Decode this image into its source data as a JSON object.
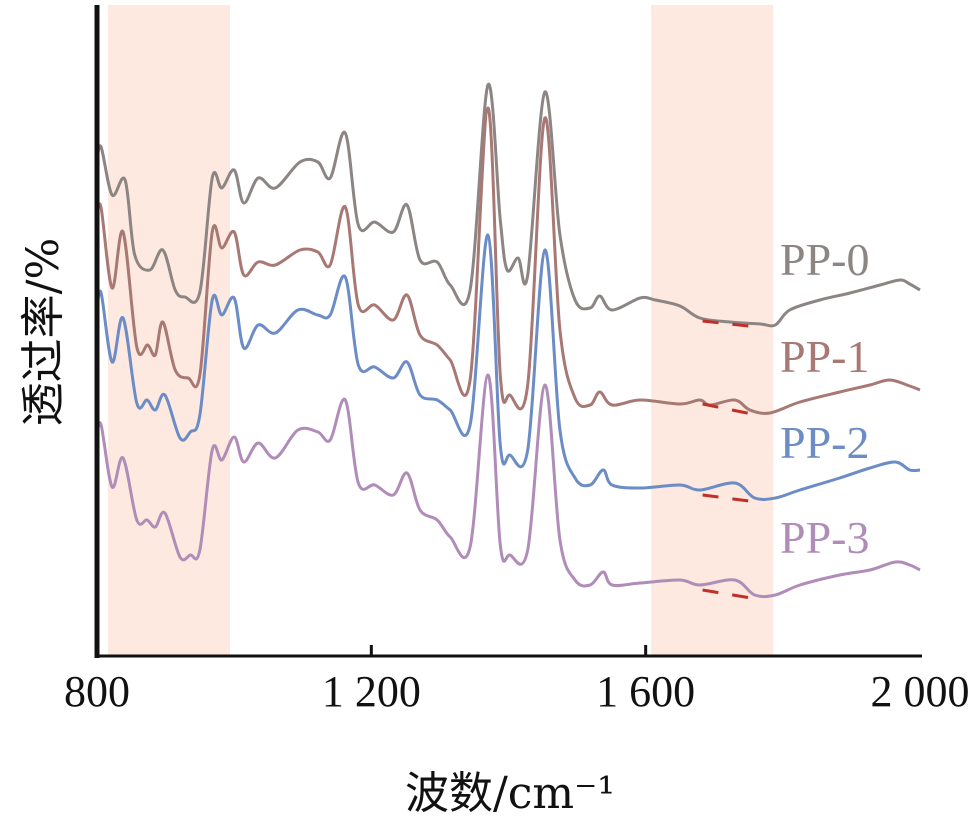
{
  "chart_data": {
    "type": "line",
    "title": "",
    "xlabel": "波数/cm⁻¹",
    "ylabel": "透过率/%",
    "xlim": [
      800,
      2000
    ],
    "ylim": [
      0,
      130
    ],
    "x_ticks": [
      800,
      1200,
      1600,
      2000
    ],
    "x_tick_labels": [
      "800",
      "1 200",
      "1 600",
      "2 000"
    ],
    "y_ticks": [],
    "grid": false,
    "highlight_bands": [
      {
        "from": 816,
        "to": 994,
        "color": "#fde9df"
      },
      {
        "from": 1608,
        "to": 1786,
        "color": "#fde9df"
      }
    ],
    "series": [
      {
        "name": "PP-0",
        "color": "#8c8583",
        "x": [
          800,
          806,
          822,
          841,
          855,
          877,
          896,
          914,
          928,
          950,
          968,
          982,
          1000,
          1014,
          1035,
          1060,
          1096,
          1122,
          1140,
          1162,
          1181,
          1205,
          1232,
          1252,
          1271,
          1296,
          1315,
          1344,
          1370,
          1388,
          1398,
          1414,
          1428,
          1453,
          1475,
          1497,
          1519,
          1533,
          1551,
          1592,
          1614,
          1650,
          1679,
          1723,
          1767,
          1789,
          1810,
          1854,
          1898,
          1942,
          1971,
          1985,
          2000
        ],
        "y": [
          99,
          101.6,
          92,
          95,
          80,
          77,
          81,
          73,
          71.6,
          72.6,
          95.4,
          93.4,
          97,
          90.4,
          95.4,
          93.4,
          98.6,
          98.6,
          95.4,
          104.4,
          86,
          86.6,
          84.6,
          90,
          79,
          78.6,
          74,
          73,
          114,
          87,
          77,
          79.4,
          76,
          112.6,
          84,
          71,
          69.4,
          71.8,
          69,
          71.4,
          71,
          69.8,
          67.4,
          66.6,
          66.2,
          66,
          69,
          71,
          72.4,
          74,
          75,
          74.2,
          73
        ],
        "marker": {
          "x": [
            1683,
            1762
          ],
          "y": [
            67.2,
            66
          ]
        }
      },
      {
        "name": "PP-1",
        "color": "#a87874",
        "x": [
          800,
          806,
          822,
          838,
          858,
          874,
          885,
          896,
          914,
          933,
          950,
          968,
          982,
          1000,
          1014,
          1035,
          1060,
          1096,
          1122,
          1140,
          1162,
          1181,
          1205,
          1232,
          1252,
          1271,
          1296,
          1315,
          1344,
          1370,
          1388,
          1402,
          1428,
          1453,
          1475,
          1497,
          1519,
          1533,
          1551,
          1592,
          1650,
          1679,
          1694,
          1730,
          1752,
          1781,
          1825,
          1883,
          1927,
          1956,
          1985,
          2000
        ],
        "y": [
          88,
          89.4,
          73.4,
          84.6,
          61.6,
          62,
          60,
          66.6,
          57,
          55.4,
          56,
          84.6,
          81.4,
          84.6,
          76,
          78.6,
          78,
          81,
          80.6,
          78,
          89.6,
          70,
          70,
          67,
          72,
          64,
          62,
          59,
          55,
          109.4,
          56,
          52,
          54,
          107.4,
          65,
          51.4,
          50,
          52.6,
          50,
          51,
          50.2,
          51,
          50,
          51,
          49,
          48.4,
          50.6,
          52.6,
          54,
          55,
          53.8,
          53
        ],
        "marker": {
          "x": [
            1683,
            1762
          ],
          "y": [
            50.6,
            48.4
          ]
        }
      },
      {
        "name": "PP-2",
        "color": "#6b8cc4",
        "x": [
          800,
          806,
          822,
          838,
          858,
          873,
          885,
          899,
          921,
          936,
          950,
          968,
          982,
          1000,
          1014,
          1035,
          1060,
          1093,
          1122,
          1140,
          1162,
          1181,
          1205,
          1232,
          1252,
          1271,
          1296,
          1315,
          1344,
          1370,
          1388,
          1402,
          1428,
          1453,
          1475,
          1497,
          1519,
          1538,
          1551,
          1592,
          1650,
          1679,
          1730,
          1759,
          1789,
          1825,
          1883,
          1927,
          1964,
          1985,
          2000
        ],
        "y": [
          69,
          72.4,
          58.6,
          67.4,
          50.4,
          51,
          49,
          52,
          43.4,
          44.6,
          48,
          71,
          68,
          71.4,
          61.4,
          66,
          64.4,
          69,
          68,
          68,
          75.6,
          58,
          57.6,
          55.4,
          58.6,
          52,
          51,
          49,
          46,
          84,
          42,
          40,
          41,
          81,
          45,
          35.4,
          34,
          37,
          34,
          33.4,
          34,
          33,
          34.4,
          31.4,
          31.4,
          33,
          35.4,
          37.4,
          38.6,
          37,
          37
        ],
        "marker": {
          "x": [
            1683,
            1762
          ],
          "y": [
            32.4,
            31
          ]
        }
      },
      {
        "name": "PP-3",
        "color": "#b08cb8",
        "x": [
          800,
          806,
          822,
          838,
          858,
          873,
          885,
          899,
          921,
          936,
          950,
          968,
          982,
          1000,
          1014,
          1035,
          1060,
          1093,
          1122,
          1140,
          1162,
          1181,
          1205,
          1232,
          1252,
          1271,
          1296,
          1315,
          1344,
          1370,
          1388,
          1402,
          1428,
          1453,
          1475,
          1497,
          1519,
          1538,
          1551,
          1592,
          1650,
          1679,
          1730,
          1759,
          1789,
          1825,
          1883,
          1927,
          1964,
          1985,
          2000
        ],
        "y": [
          44,
          46,
          33.6,
          39.4,
          27,
          27,
          25.6,
          28.4,
          19.6,
          20,
          21,
          41,
          39,
          43.6,
          38.6,
          42.4,
          39.4,
          45,
          44.6,
          43,
          51,
          34.4,
          34,
          32,
          36.4,
          29,
          27,
          23.6,
          21.6,
          56,
          22,
          20,
          21,
          54,
          23,
          15,
          14,
          16.6,
          14,
          14.4,
          15,
          14,
          15,
          12,
          12,
          14,
          16,
          17,
          18.6,
          18,
          17
        ],
        "marker": {
          "x": [
            1683,
            1762
          ],
          "y": [
            13.4,
            11.6
          ]
        }
      }
    ],
    "marker_color": "#c0302a",
    "legend": "inline-right"
  }
}
